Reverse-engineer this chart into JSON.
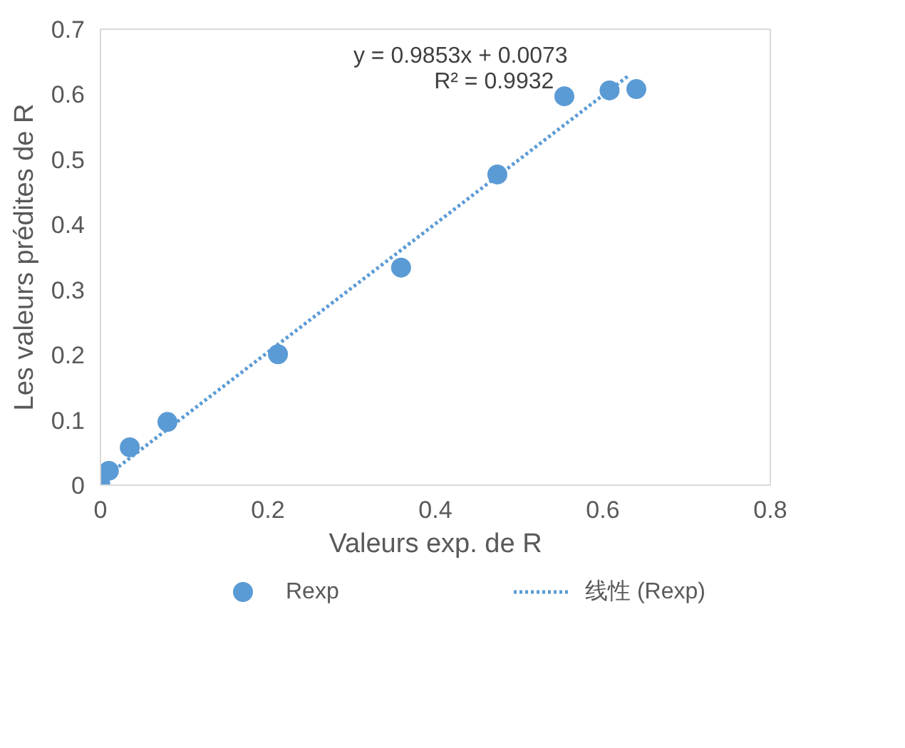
{
  "chart_data": {
    "type": "scatter",
    "xlabel": "Valeurs exp. de R",
    "ylabel": "Les valeurs prédites de R",
    "series": [
      {
        "name": "Rexp",
        "color": "#5b9bd5",
        "marker": "circle",
        "x": [
          0.0,
          0.01,
          0.035,
          0.08,
          0.212,
          0.359,
          0.474,
          0.554,
          0.608,
          0.64
        ],
        "values": [
          0.0,
          0.022,
          0.058,
          0.097,
          0.201,
          0.334,
          0.477,
          0.597,
          0.606,
          0.608
        ]
      },
      {
        "name": "线性 (Rexp)",
        "type": "line",
        "color": "#5b9bd5",
        "line_style": "dotted",
        "marker": "none",
        "x": [
          0.0,
          0.63
        ],
        "values": [
          0.007,
          0.628
        ]
      }
    ],
    "xlim": [
      0,
      0.8
    ],
    "ylim": [
      0,
      0.7
    ],
    "xticks": [
      0,
      0.2,
      0.4,
      0.6,
      0.8
    ],
    "yticks": [
      0,
      0.1,
      0.2,
      0.3,
      0.4,
      0.5,
      0.6,
      0.7
    ],
    "grid": false,
    "legend": "bottom",
    "annotations": [
      "y = 0.9853x + 0.0073",
      "R² = 0.9932"
    ]
  }
}
